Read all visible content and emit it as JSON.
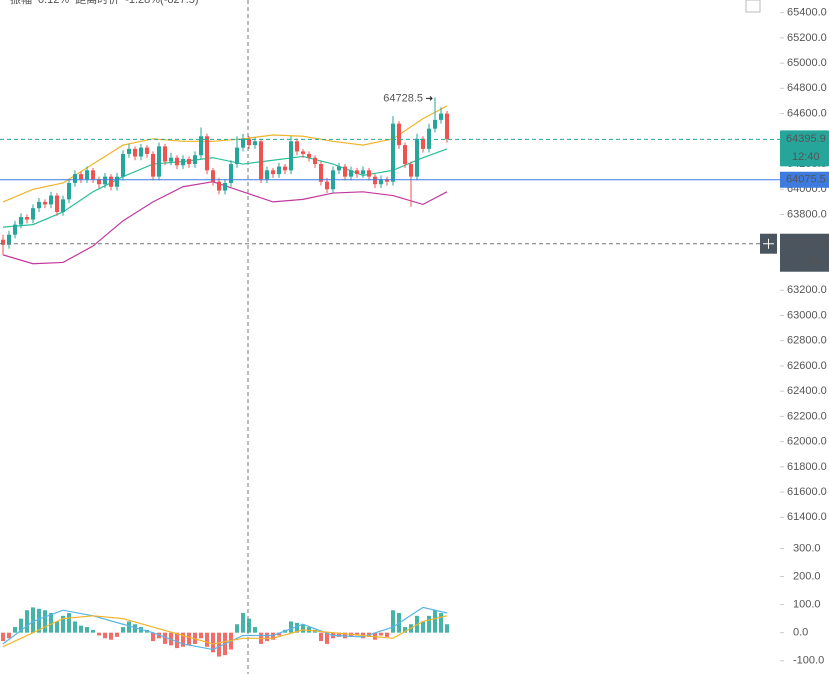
{
  "chart_data": {
    "type": "candlestick",
    "header": [
      {
        "text": "振幅",
        "color": "#666666"
      },
      {
        "text": "0.12%",
        "color": "#26a69a"
      },
      {
        "text": "距离时价",
        "color": "#666666"
      },
      {
        "text": "-1.28%(-827.5)",
        "color": "#ef5350"
      }
    ],
    "ylim": [
      61260,
      65500
    ],
    "yticks": [
      {
        "value": 61400,
        "label": "61400.0"
      },
      {
        "value": 61600,
        "label": "61600.0"
      },
      {
        "value": 61800,
        "label": "61800.0"
      },
      {
        "value": 62000,
        "label": "62000.0"
      },
      {
        "value": 62200,
        "label": "62200.0"
      },
      {
        "value": 62400,
        "label": "62400.0"
      },
      {
        "value": 62600,
        "label": "62600.0"
      },
      {
        "value": 62800,
        "label": "62800.0"
      },
      {
        "value": 63000,
        "label": "63000.0"
      },
      {
        "value": 63200,
        "label": "63200.0"
      },
      {
        "value": 63400,
        "label": "63400.0"
      },
      {
        "value": 63600,
        "label": "63600.0"
      },
      {
        "value": 63800,
        "label": "63800.0"
      },
      {
        "value": 64000,
        "label": "64000.0"
      },
      {
        "value": 64200,
        "label": "64200.0"
      },
      {
        "value": 64400,
        "label": "64400.0"
      },
      {
        "value": 64600,
        "label": "64600.0"
      },
      {
        "value": 64800,
        "label": "64800.0"
      },
      {
        "value": 65000,
        "label": "65000.0"
      },
      {
        "value": 65200,
        "label": "65200.0"
      },
      {
        "value": 65400,
        "label": "65400.0"
      }
    ],
    "up_color": "#26a69a",
    "down_color": "#ef5350",
    "candles": {
      "open": [
        63600,
        63560,
        63640,
        63720,
        63780,
        63760,
        63850,
        63900,
        63880,
        63950,
        63820,
        63920,
        64050,
        64120,
        64080,
        64150,
        64080,
        64040,
        64100,
        64020,
        64100,
        64280,
        64320,
        64260,
        64330,
        64280,
        64100,
        64340,
        64220,
        64250,
        64190,
        64240,
        64200,
        64270,
        64420,
        64150,
        64060,
        63990,
        64050,
        64200,
        64330,
        64400,
        64350,
        64380,
        64080,
        64150,
        64120,
        64180,
        64150,
        64380,
        64300,
        64280,
        64250,
        64200,
        64060,
        64000,
        64150,
        64180,
        64100,
        64150,
        64120,
        64150,
        64100,
        64040,
        64080,
        64060,
        64520,
        64350,
        64200,
        64100,
        64400,
        64320,
        64480,
        64550,
        64600
      ],
      "high": [
        63640,
        63670,
        63750,
        63810,
        63800,
        63880,
        63930,
        63920,
        63980,
        63970,
        63950,
        64080,
        64150,
        64140,
        64180,
        64170,
        64100,
        64130,
        64120,
        64130,
        64310,
        64360,
        64340,
        64360,
        64350,
        64300,
        64370,
        64360,
        64290,
        64270,
        64270,
        64260,
        64300,
        64490,
        64440,
        64170,
        64090,
        64080,
        64230,
        64420,
        64440,
        64420,
        64410,
        64400,
        64180,
        64170,
        64210,
        64200,
        64420,
        64400,
        64320,
        64300,
        64270,
        64220,
        64090,
        64180,
        64210,
        64200,
        64180,
        64170,
        64180,
        64170,
        64120,
        64110,
        64100,
        64580,
        64540,
        64370,
        64220,
        64440,
        64420,
        64520,
        64728.5,
        64650,
        64620
      ],
      "low": [
        63480,
        63530,
        63610,
        63690,
        63730,
        63730,
        63820,
        63850,
        63850,
        63790,
        63790,
        63890,
        64020,
        64050,
        64050,
        64050,
        64010,
        64010,
        63990,
        63990,
        64070,
        64250,
        64230,
        64230,
        64250,
        64070,
        64070,
        64190,
        64190,
        64160,
        64160,
        64170,
        64170,
        64240,
        64120,
        64030,
        63960,
        63960,
        64020,
        64170,
        64300,
        64320,
        64320,
        64050,
        64050,
        64090,
        64090,
        64120,
        64120,
        64270,
        64250,
        64220,
        64170,
        64030,
        63970,
        63970,
        64120,
        64070,
        64070,
        64090,
        64090,
        64070,
        64010,
        64010,
        64030,
        64030,
        64320,
        64170,
        63860,
        64070,
        64290,
        64290,
        64450,
        64520,
        64370
      ],
      "close": [
        63560,
        63640,
        63720,
        63780,
        63760,
        63850,
        63900,
        63880,
        63950,
        63820,
        63920,
        64050,
        64120,
        64080,
        64150,
        64080,
        64040,
        64100,
        64020,
        64100,
        64280,
        64320,
        64260,
        64330,
        64280,
        64100,
        64340,
        64220,
        64250,
        64190,
        64240,
        64200,
        64270,
        64420,
        64150,
        64060,
        63990,
        64050,
        64200,
        64330,
        64400,
        64350,
        64380,
        64080,
        64150,
        64120,
        64180,
        64150,
        64380,
        64300,
        64280,
        64250,
        64200,
        64060,
        64000,
        64150,
        64180,
        64100,
        64150,
        64120,
        64150,
        64100,
        64040,
        64080,
        64060,
        64520,
        64350,
        64200,
        64100,
        64400,
        64320,
        64480,
        64550,
        64600,
        64395.9
      ]
    },
    "bands": {
      "x": [
        0,
        5,
        10,
        15,
        20,
        25,
        30,
        35,
        40,
        45,
        50,
        55,
        60,
        65,
        70,
        74
      ],
      "series": [
        {
          "color": "#f0b429",
          "values": [
            63900,
            64000,
            64050,
            64200,
            64350,
            64400,
            64380,
            64380,
            64400,
            64430,
            64420,
            64380,
            64350,
            64400,
            64560,
            64660
          ]
        },
        {
          "color": "#2bbf9a",
          "values": [
            63700,
            63720,
            63820,
            63980,
            64100,
            64200,
            64220,
            64250,
            64200,
            64230,
            64260,
            64200,
            64110,
            64150,
            64250,
            64320
          ]
        },
        {
          "color": "#c2379e",
          "values": [
            63480,
            63410,
            63420,
            63550,
            63750,
            63900,
            64020,
            64060,
            63980,
            63900,
            63920,
            63970,
            63980,
            63950,
            63880,
            63980
          ]
        }
      ]
    },
    "last_time": "12:40",
    "hline": {
      "value": 64075.5,
      "color": "#3d7be0"
    },
    "crosshair": {
      "price": 63568.4,
      "change": "-1.28%"
    },
    "macd": {
      "ylim": [
        -140,
        330
      ],
      "yticks": [
        {
          "value": 300,
          "label": "300.0"
        },
        {
          "value": 200,
          "label": "200.0"
        },
        {
          "value": 100,
          "label": "100.0"
        },
        {
          "value": 0,
          "label": "0.0"
        },
        {
          "value": -100,
          "label": "-100.0"
        }
      ],
      "histogram": [
        -30,
        -20,
        20,
        50,
        80,
        90,
        85,
        80,
        70,
        40,
        60,
        70,
        40,
        25,
        20,
        10,
        -10,
        -20,
        -25,
        -15,
        20,
        40,
        30,
        20,
        10,
        -30,
        -20,
        -40,
        -45,
        -55,
        -50,
        -45,
        -40,
        -20,
        -50,
        -70,
        -85,
        -80,
        -60,
        30,
        70,
        50,
        20,
        -40,
        -30,
        -25,
        -10,
        10,
        40,
        35,
        30,
        20,
        10,
        -30,
        -40,
        -20,
        -15,
        -20,
        -15,
        -10,
        -20,
        -15,
        -25,
        -10,
        -15,
        80,
        70,
        20,
        30,
        60,
        40,
        60,
        80,
        70,
        30
      ],
      "x": [
        0,
        5,
        10,
        15,
        20,
        25,
        30,
        35,
        40,
        45,
        50,
        55,
        60,
        65,
        70,
        74
      ],
      "lines": [
        {
          "color": "#5ab4e6",
          "values": [
            -40,
            40,
            80,
            60,
            30,
            0,
            -40,
            -60,
            -10,
            -10,
            30,
            -10,
            -15,
            20,
            90,
            70
          ]
        },
        {
          "color": "#f0b429",
          "values": [
            -50,
            0,
            50,
            60,
            50,
            20,
            -10,
            -40,
            -20,
            -20,
            10,
            0,
            -10,
            -20,
            40,
            60
          ]
        }
      ]
    }
  }
}
